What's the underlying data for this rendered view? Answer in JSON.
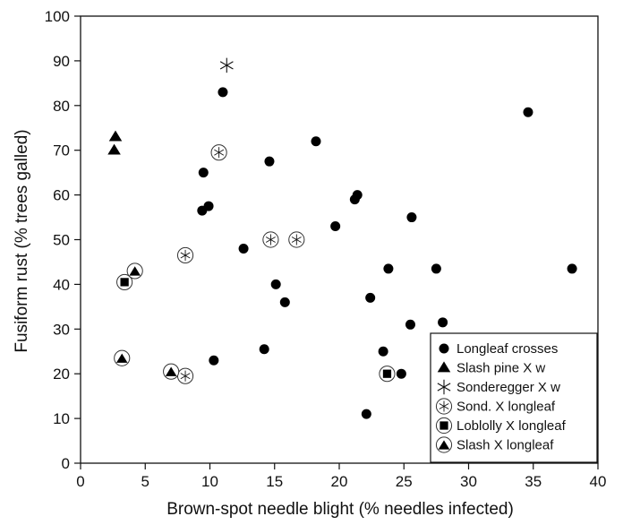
{
  "chart_data": {
    "type": "scatter",
    "xlabel": "Brown-spot needle blight (% needles infected)",
    "ylabel": "Fusiform rust (% trees galled)",
    "xlim": [
      0,
      40
    ],
    "ylim": [
      0,
      100
    ],
    "xticks": [
      "0",
      "5",
      "10",
      "15",
      "20",
      "25",
      "30",
      "35",
      "40"
    ],
    "yticks": [
      "0",
      "10",
      "20",
      "30",
      "40",
      "50",
      "60",
      "70",
      "80",
      "90",
      "100"
    ],
    "grid": false,
    "legend_position": "bottom-right",
    "series": [
      {
        "name": "Longleaf crosses",
        "marker": "filled-circle",
        "points": [
          [
            11.0,
            83
          ],
          [
            9.5,
            65
          ],
          [
            9.4,
            56.5
          ],
          [
            9.9,
            57.5
          ],
          [
            10.3,
            23
          ],
          [
            12.6,
            48
          ],
          [
            14.2,
            25.5
          ],
          [
            14.6,
            67.5
          ],
          [
            15.1,
            40
          ],
          [
            15.8,
            36
          ],
          [
            18.2,
            72
          ],
          [
            19.7,
            53
          ],
          [
            21.2,
            59
          ],
          [
            21.4,
            60
          ],
          [
            22.1,
            11
          ],
          [
            22.4,
            37
          ],
          [
            23.4,
            25
          ],
          [
            23.8,
            43.5
          ],
          [
            24.8,
            20
          ],
          [
            25.5,
            31
          ],
          [
            25.6,
            55
          ],
          [
            27.5,
            43.5
          ],
          [
            28.0,
            31.5
          ],
          [
            34.6,
            78.5
          ],
          [
            38.0,
            43.5
          ]
        ]
      },
      {
        "name": "Slash pine X w",
        "marker": "filled-triangle",
        "points": [
          [
            2.7,
            73
          ],
          [
            2.6,
            70
          ]
        ]
      },
      {
        "name": "Sonderegger X w",
        "marker": "asterisk",
        "points": [
          [
            11.3,
            89
          ]
        ]
      },
      {
        "name": "Sond. X longleaf",
        "marker": "circled-asterisk",
        "points": [
          [
            10.7,
            69.5
          ],
          [
            8.1,
            46.5
          ],
          [
            14.7,
            50
          ],
          [
            16.7,
            50
          ],
          [
            8.1,
            19.5
          ]
        ]
      },
      {
        "name": "Loblolly X longleaf",
        "marker": "circled-square",
        "points": [
          [
            3.4,
            40.5
          ],
          [
            23.7,
            20
          ]
        ]
      },
      {
        "name": "Slash X longleaf",
        "marker": "circled-triangle",
        "points": [
          [
            4.2,
            43
          ],
          [
            3.2,
            23.5
          ],
          [
            7.0,
            20.5
          ]
        ]
      }
    ]
  }
}
